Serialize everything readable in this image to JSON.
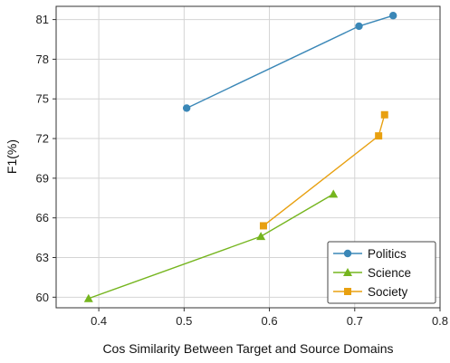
{
  "chart_data": {
    "type": "line",
    "title": "",
    "xlabel": "Cos Similarity Between Target and Source Domains",
    "ylabel": "F1(%)",
    "xlim": [
      0.35,
      0.8
    ],
    "ylim": [
      59.2,
      82.0
    ],
    "xticks": [
      0.4,
      0.5,
      0.6,
      0.7,
      0.8
    ],
    "yticks": [
      60,
      63,
      66,
      69,
      72,
      75,
      78,
      81
    ],
    "grid": true,
    "legend_position": "bottom-right",
    "series": [
      {
        "name": "Politics",
        "color": "#3a87b7",
        "marker": "circle",
        "x": [
          0.503,
          0.705,
          0.745
        ],
        "y": [
          74.3,
          80.5,
          81.3
        ]
      },
      {
        "name": "Science",
        "color": "#75b51e",
        "marker": "triangle",
        "x": [
          0.388,
          0.59,
          0.675
        ],
        "y": [
          59.9,
          64.6,
          67.8
        ]
      },
      {
        "name": "Society",
        "color": "#e8a010",
        "marker": "square",
        "x": [
          0.593,
          0.728,
          0.735
        ],
        "y": [
          65.4,
          72.2,
          73.8
        ]
      }
    ]
  }
}
